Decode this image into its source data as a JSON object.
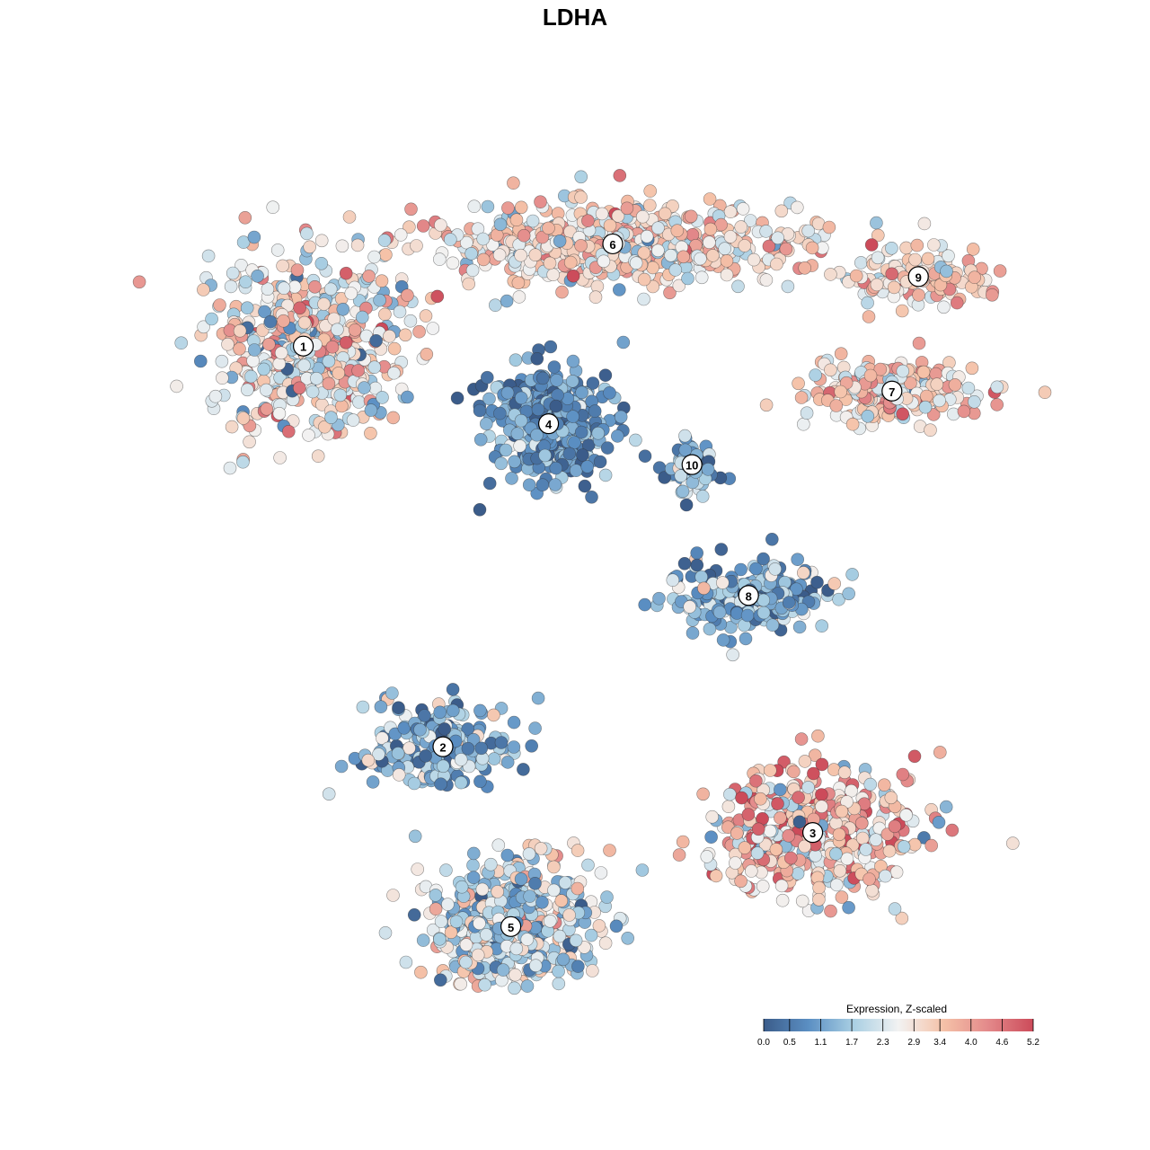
{
  "title": "LDHA",
  "legend": {
    "title": "Expression, Z-scaled",
    "ticks": [
      "0.0",
      "0.5",
      "1.1",
      "1.7",
      "2.3",
      "2.9",
      "3.4",
      "4.0",
      "4.6",
      "5.2"
    ],
    "range": [
      0.0,
      5.2
    ],
    "colors": [
      "#3b5c8a",
      "#5b8fc3",
      "#a9cfe3",
      "#f2f2f2",
      "#f5c2a8",
      "#e3898a",
      "#cc4b5a"
    ]
  },
  "chart_data": {
    "type": "scatter",
    "title": "LDHA",
    "xlabel": "",
    "ylabel": "",
    "color_label": "Expression, Z-scaled",
    "color_range": [
      0.0,
      5.2
    ],
    "clusters": [
      {
        "label": "1",
        "x": -0.72,
        "y": 0.56,
        "mean_expression": 2.7
      },
      {
        "label": "2",
        "x": -0.35,
        "y": -0.42,
        "mean_expression": 1.4
      },
      {
        "label": "3",
        "x": 0.63,
        "y": -0.63,
        "mean_expression": 3.3
      },
      {
        "label": "4",
        "x": -0.07,
        "y": 0.37,
        "mean_expression": 0.9
      },
      {
        "label": "5",
        "x": -0.17,
        "y": -0.86,
        "mean_expression": 2.2
      },
      {
        "label": "6",
        "x": 0.1,
        "y": 0.81,
        "mean_expression": 3.0
      },
      {
        "label": "7",
        "x": 0.84,
        "y": 0.45,
        "mean_expression": 3.1
      },
      {
        "label": "8",
        "x": 0.46,
        "y": -0.05,
        "mean_expression": 1.3
      },
      {
        "label": "9",
        "x": 0.91,
        "y": 0.73,
        "mean_expression": 3.2
      },
      {
        "label": "10",
        "x": 0.31,
        "y": 0.27,
        "mean_expression": 1.2
      }
    ]
  }
}
